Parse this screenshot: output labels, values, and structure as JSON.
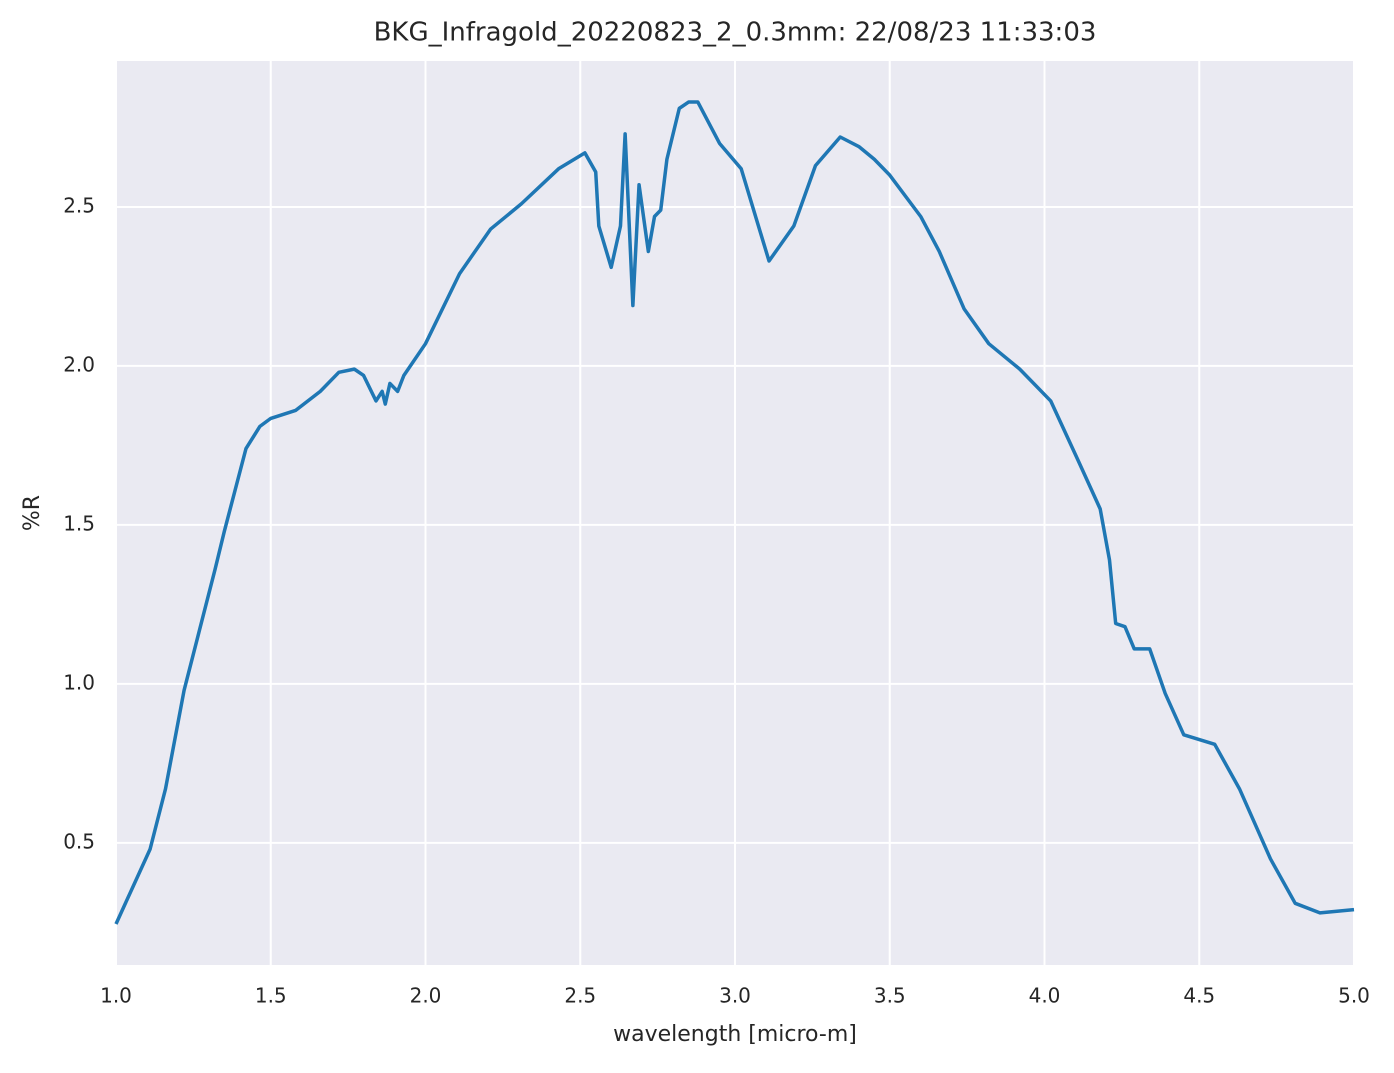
{
  "chart_data": {
    "type": "line",
    "title": "BKG_Infragold_20220823_2_0.3mm:  22/08/23 11:33:03",
    "xlabel": "wavelength [micro-m]",
    "ylabel": "%R",
    "color": "#1f77b4",
    "grid": true,
    "background": "#eaeaf2",
    "xlim": [
      1.0,
      5.0
    ],
    "ylim": [
      0.116,
      2.959
    ],
    "xticks": [
      {
        "value": 1,
        "label": "1.0"
      },
      1.5,
      {
        "value": 2,
        "label": "2.0"
      },
      2.5,
      {
        "value": 3,
        "label": "3.0"
      },
      3.5,
      {
        "value": 4,
        "label": "4.0"
      },
      4.5,
      {
        "value": 5,
        "label": "5.0"
      }
    ],
    "yticks": [
      0.5,
      {
        "value": 1,
        "label": "1.0"
      },
      1.5,
      {
        "value": 2,
        "label": "2.0"
      },
      2.5
    ],
    "x": [
      1.0,
      1.11,
      1.16,
      1.22,
      1.27,
      1.32,
      1.35,
      1.385,
      1.42,
      1.465,
      1.5,
      1.58,
      1.66,
      1.72,
      1.77,
      1.8,
      1.84,
      1.86,
      1.87,
      1.885,
      1.91,
      1.93,
      2.0,
      2.11,
      2.21,
      2.31,
      2.43,
      2.515,
      2.55,
      2.56,
      2.6,
      2.63,
      2.645,
      2.67,
      2.69,
      2.72,
      2.74,
      2.76,
      2.78,
      2.82,
      2.85,
      2.88,
      2.95,
      3.02,
      3.11,
      3.19,
      3.26,
      3.34,
      3.4,
      3.45,
      3.5,
      3.6,
      3.66,
      3.74,
      3.82,
      3.92,
      4.02,
      4.11,
      4.18,
      4.21,
      4.23,
      4.26,
      4.29,
      4.34,
      4.39,
      4.45,
      4.55,
      4.63,
      4.73,
      4.81,
      4.89,
      5.0
    ],
    "values": [
      0.245,
      0.48,
      0.67,
      0.98,
      1.17,
      1.36,
      1.48,
      1.61,
      1.74,
      1.81,
      1.835,
      1.86,
      1.92,
      1.98,
      1.99,
      1.97,
      1.89,
      1.92,
      1.88,
      1.945,
      1.92,
      1.97,
      2.07,
      2.29,
      2.43,
      2.51,
      2.62,
      2.67,
      2.61,
      2.44,
      2.31,
      2.44,
      2.73,
      2.19,
      2.57,
      2.36,
      2.47,
      2.49,
      2.65,
      2.81,
      2.83,
      2.83,
      2.7,
      2.62,
      2.33,
      2.44,
      2.63,
      2.72,
      2.69,
      2.65,
      2.6,
      2.47,
      2.36,
      2.18,
      2.07,
      1.99,
      1.89,
      1.7,
      1.55,
      1.39,
      1.19,
      1.18,
      1.11,
      1.11,
      0.97,
      0.84,
      0.81,
      0.67,
      0.45,
      0.31,
      0.28,
      0.29
    ]
  }
}
